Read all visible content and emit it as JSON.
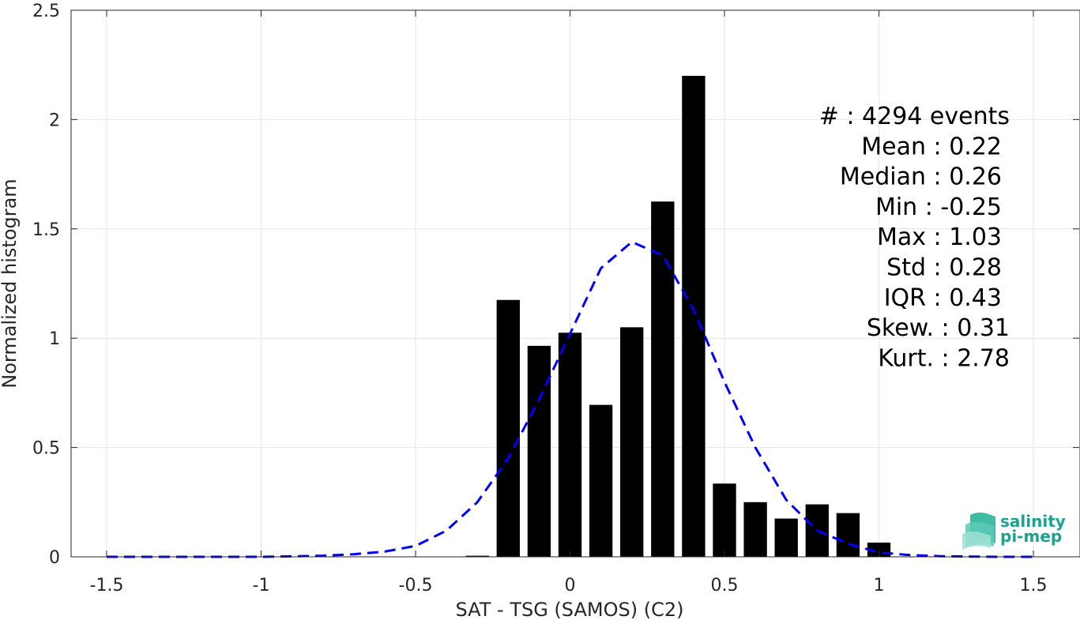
{
  "chart_data": {
    "type": "bar",
    "xlabel": "SAT - TSG (SAMOS) (C2)",
    "ylabel": "Normalized histogram",
    "xlim": [
      -1.5,
      1.5
    ],
    "ylim": [
      0,
      2.5
    ],
    "grid": true,
    "x_ticks": [
      -1.5,
      -1,
      -0.5,
      0,
      0.5,
      1,
      1.5
    ],
    "x_tick_labels": [
      "-1.5",
      "-1",
      "-0.5",
      "0",
      "0.5",
      "1",
      "1.5"
    ],
    "y_ticks": [
      0,
      0.5,
      1,
      1.5,
      2,
      2.5
    ],
    "y_tick_labels": [
      "0",
      "0.5",
      "1",
      "1.5",
      "2",
      "2.5"
    ],
    "bar_width": 0.075,
    "bars": {
      "x": [
        -0.3,
        -0.2,
        -0.1,
        0.0,
        0.1,
        0.2,
        0.3,
        0.4,
        0.5,
        0.6,
        0.7,
        0.8,
        0.9,
        1.0
      ],
      "values": [
        0.005,
        1.175,
        0.965,
        1.025,
        0.695,
        1.05,
        1.625,
        2.2,
        0.335,
        0.25,
        0.175,
        0.24,
        0.2,
        0.065
      ],
      "color": "#000000"
    },
    "fit_curve": {
      "color": "#0000ff",
      "style": "dashed",
      "x": [
        -1.5,
        -1.4,
        -1.3,
        -1.2,
        -1.1,
        -1.0,
        -0.9,
        -0.8,
        -0.7,
        -0.6,
        -0.5,
        -0.4,
        -0.3,
        -0.2,
        -0.1,
        0.0,
        0.1,
        0.2,
        0.3,
        0.4,
        0.5,
        0.6,
        0.7,
        0.8,
        0.9,
        1.0,
        1.1,
        1.2,
        1.3,
        1.4,
        1.5
      ],
      "y": [
        0.0,
        0.0,
        0.0,
        0.0,
        0.0,
        0.0,
        0.002,
        0.005,
        0.012,
        0.024,
        0.05,
        0.12,
        0.25,
        0.45,
        0.72,
        1.02,
        1.32,
        1.44,
        1.38,
        1.13,
        0.8,
        0.5,
        0.26,
        0.12,
        0.06,
        0.02,
        0.008,
        0.003,
        0.001,
        0.0,
        0.0
      ]
    }
  },
  "stats": [
    {
      "label": "#  ",
      "value": ": 4294 events"
    },
    {
      "label": "Mean ",
      "value": ": 0.22"
    },
    {
      "label": "Median ",
      "value": ": 0.26"
    },
    {
      "label": "Min ",
      "value": ": -0.25"
    },
    {
      "label": "Max ",
      "value": ": 1.03"
    },
    {
      "label": "Std ",
      "value": ": 0.28"
    },
    {
      "label": "IQR ",
      "value": ": 0.43"
    },
    {
      "label": "Skew. ",
      "value": ": 0.31"
    },
    {
      "label": "Kurt. ",
      "value": ": 2.78"
    }
  ],
  "logo": {
    "line1": "salinity",
    "line2": "pi-mep",
    "color": "#1aa38f"
  }
}
